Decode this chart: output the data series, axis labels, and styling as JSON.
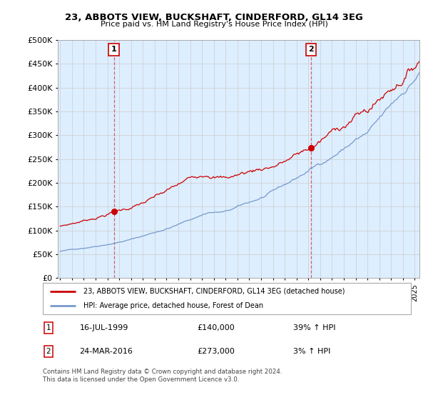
{
  "title": "23, ABBOTS VIEW, BUCKSHAFT, CINDERFORD, GL14 3EG",
  "subtitle": "Price paid vs. HM Land Registry's House Price Index (HPI)",
  "legend_line1": "23, ABBOTS VIEW, BUCKSHAFT, CINDERFORD, GL14 3EG (detached house)",
  "legend_line2": "HPI: Average price, detached house, Forest of Dean",
  "annotation1_date": "16-JUL-1999",
  "annotation1_price": "£140,000",
  "annotation1_hpi": "39% ↑ HPI",
  "annotation2_date": "24-MAR-2016",
  "annotation2_price": "£273,000",
  "annotation2_hpi": "3% ↑ HPI",
  "footer": "Contains HM Land Registry data © Crown copyright and database right 2024.\nThis data is licensed under the Open Government Licence v3.0.",
  "red_color": "#cc0000",
  "blue_color": "#7799cc",
  "bg_plot_color": "#ddeeff",
  "background_color": "#ffffff",
  "grid_color": "#cccccc",
  "ylim": [
    0,
    500000
  ],
  "yticks": [
    0,
    50000,
    100000,
    150000,
    200000,
    250000,
    300000,
    350000,
    400000,
    450000,
    500000
  ],
  "sale1_x": 1999.54,
  "sale1_y": 140000,
  "sale2_x": 2016.23,
  "sale2_y": 273000,
  "xmin": 1995,
  "xmax": 2025
}
